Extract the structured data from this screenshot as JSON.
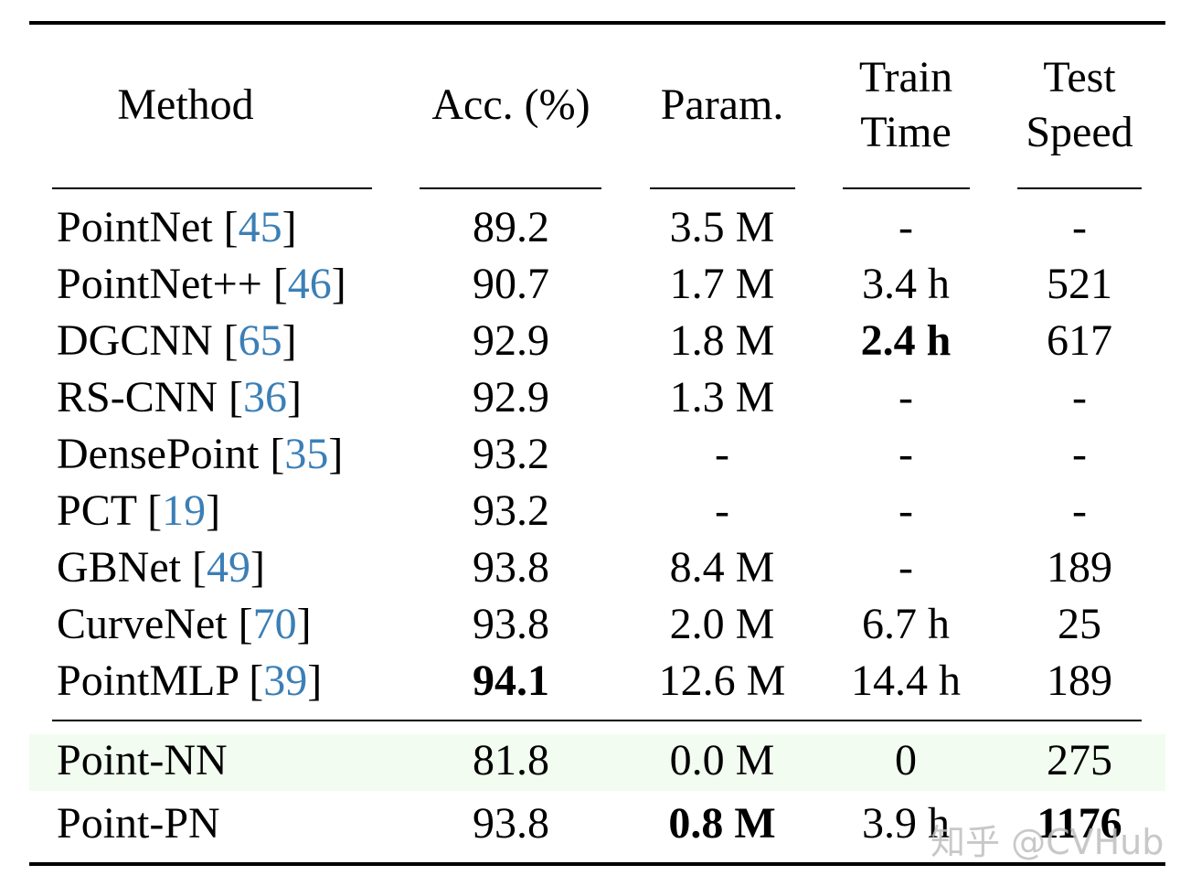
{
  "table": {
    "columns": [
      {
        "label": "Method"
      },
      {
        "label": "Acc. (%)"
      },
      {
        "label": "Param."
      },
      {
        "label": "Train Time",
        "lines": [
          "Train",
          "Time"
        ]
      },
      {
        "label": "Test Speed",
        "lines": [
          "Test",
          "Speed"
        ]
      }
    ],
    "rows": [
      {
        "method": "PointNet",
        "cite": "45",
        "acc": "89.2",
        "param": "3.5 M",
        "train": "-",
        "speed": "-"
      },
      {
        "method": "PointNet++",
        "cite": "46",
        "acc": "90.7",
        "param": "1.7 M",
        "train": "3.4 h",
        "speed": "521"
      },
      {
        "method": "DGCNN",
        "cite": "65",
        "acc": "92.9",
        "param": "1.8 M",
        "train": "2.4 h",
        "speed": "617",
        "bold": [
          "train"
        ]
      },
      {
        "method": "RS-CNN",
        "cite": "36",
        "acc": "92.9",
        "param": "1.3 M",
        "train": "-",
        "speed": "-"
      },
      {
        "method": "DensePoint",
        "cite": "35",
        "acc": "93.2",
        "param": "-",
        "train": "-",
        "speed": "-"
      },
      {
        "method": "PCT",
        "cite": "19",
        "acc": "93.2",
        "param": "-",
        "train": "-",
        "speed": "-"
      },
      {
        "method": "GBNet",
        "cite": "49",
        "acc": "93.8",
        "param": "8.4 M",
        "train": "-",
        "speed": "189"
      },
      {
        "method": "CurveNet",
        "cite": "70",
        "acc": "93.8",
        "param": "2.0 M",
        "train": "6.7 h",
        "speed": "25"
      },
      {
        "method": "PointMLP",
        "cite": "39",
        "acc": "94.1",
        "param": "12.6 M",
        "train": "14.4 h",
        "speed": "189",
        "bold": [
          "acc"
        ]
      }
    ],
    "ours": [
      {
        "method": "Point-NN",
        "acc": "81.8",
        "param": "0.0 M",
        "train": "0",
        "speed": "275",
        "highlight": true
      },
      {
        "method": "Point-PN",
        "acc": "93.8",
        "param": "0.8 M",
        "train": "3.9 h",
        "speed": "1176",
        "bold": [
          "param",
          "speed"
        ]
      }
    ]
  },
  "colors": {
    "citation": "#3b7fb6",
    "highlight_row": "#f2fcf0"
  },
  "watermark": "知乎 @CVHub"
}
